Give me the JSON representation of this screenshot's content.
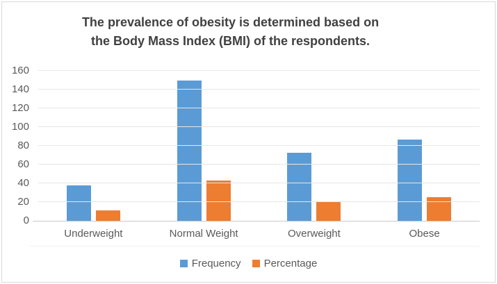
{
  "chart_data": {
    "type": "bar",
    "title": "The prevalence of obesity is determined based on the Body Mass Index (BMI) of the respondents.",
    "title_lines": [
      "The prevalence of obesity is determined based on",
      "the Body Mass Index (BMI) of the respondents."
    ],
    "categories": [
      "Underweight",
      "Normal Weight",
      "Overweight",
      "Obese"
    ],
    "series": [
      {
        "name": "Frequency",
        "color": "#5B9BD5",
        "values": [
          38,
          150,
          73,
          87
        ]
      },
      {
        "name": "Percentage",
        "color": "#ED7D31",
        "values": [
          10.9,
          43.1,
          21,
          25
        ]
      }
    ],
    "ylim": [
      0,
      160
    ],
    "yticks": [
      0,
      20,
      40,
      60,
      80,
      100,
      120,
      140,
      160
    ],
    "grid": true,
    "legend_position": "bottom",
    "xlabel": "",
    "ylabel": "",
    "colors": {
      "title_text": "#404040",
      "axis_text": "#595959",
      "gridline": "#E6E6E6",
      "axis_line": "#C9C9C9",
      "border": "#D9D9D9",
      "background": "#FFFFFF"
    }
  }
}
